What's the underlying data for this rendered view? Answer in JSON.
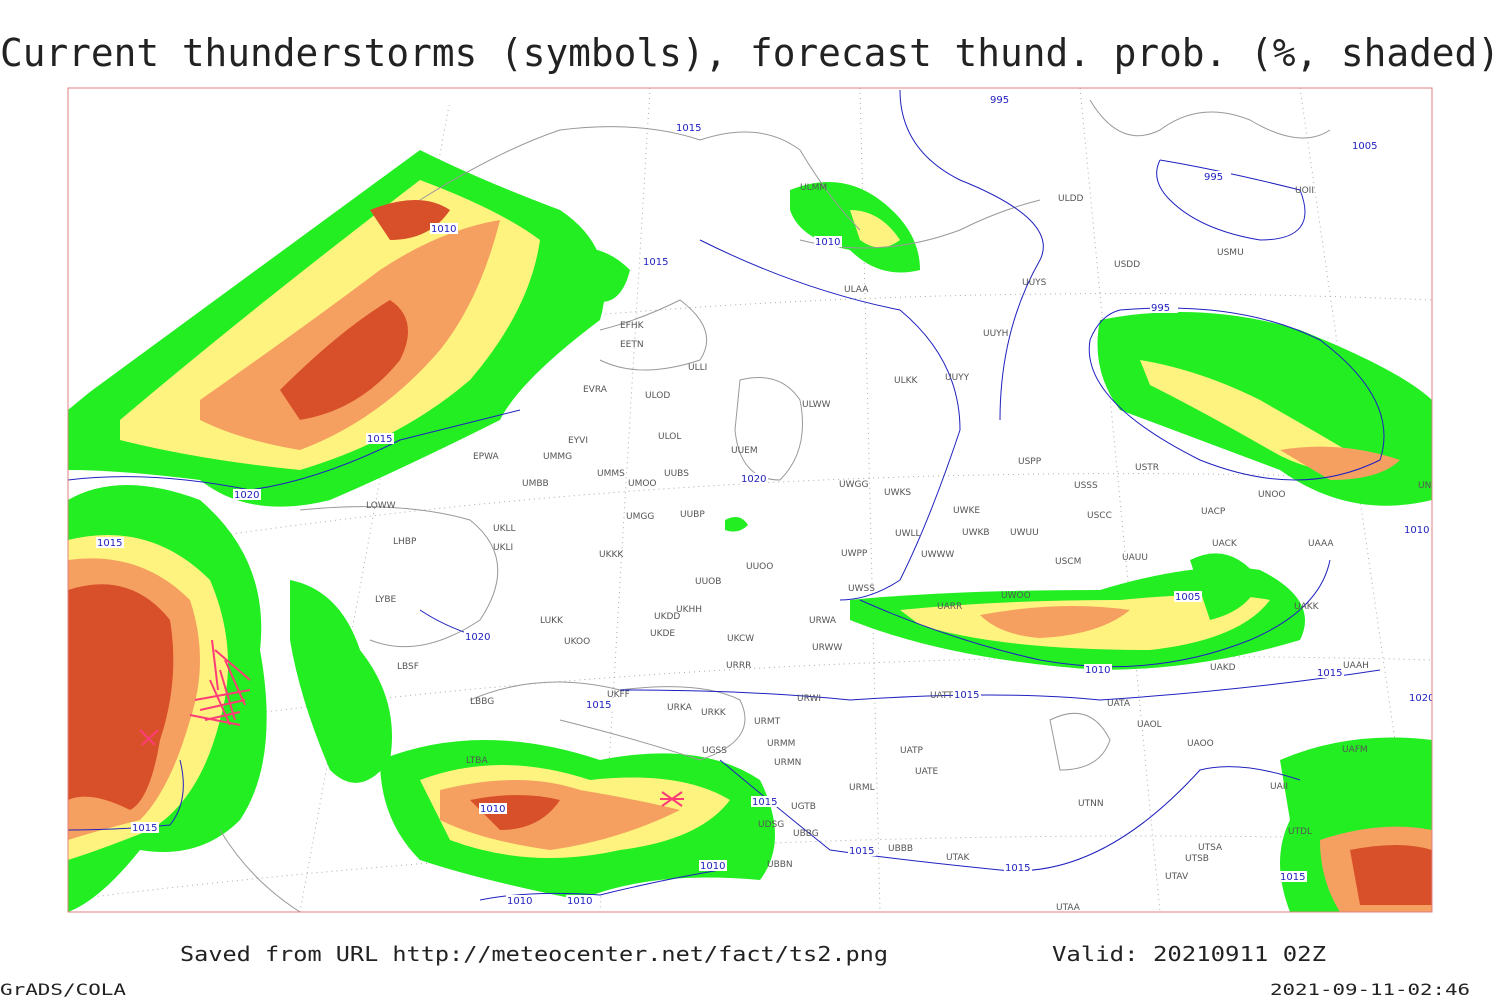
{
  "title": "Current thunderstorms (symbols), forecast thund. prob. (%, shaded)",
  "stations": [
    "ULMM",
    "ULDD",
    "UOII",
    "USDD",
    "UUYS",
    "ULAA",
    "USMU",
    "EFHK",
    "EETN",
    "UUYH",
    "ULLI",
    "ULKK",
    "UUYY",
    "EVRA",
    "ULOD",
    "ULWW",
    "EYVI",
    "ULOL",
    "UUEM",
    "EPWA",
    "UMMG",
    "UMMS",
    "UMOO",
    "UUBS",
    "USPP",
    "USTR",
    "UMBB",
    "UWGG",
    "UWKS",
    "USSS",
    "UNBB",
    "UNOO",
    "LOWW",
    "UWKE",
    "USCC",
    "UACP",
    "UKLL",
    "UMGG",
    "UUBP",
    "UWLL",
    "UWKB",
    "UWUU",
    "LHBP",
    "UKLI",
    "UAAA",
    "UACK",
    "UKKK",
    "UWPP",
    "UWWW",
    "USCM",
    "UAUU",
    "UUOO",
    "UUOB",
    "UWSS",
    "LYBE",
    "UKHH",
    "UKDD",
    "UARR",
    "UWOO",
    "UAKK",
    "UKDE",
    "LUKK",
    "UKOO",
    "URWA",
    "UKCW",
    "URWW",
    "LBSF",
    "URRR",
    "UAKD",
    "UAAH",
    "UATT",
    "URWI",
    "LBBG",
    "UKFF",
    "URKA",
    "URKK",
    "UATA",
    "URMT",
    "UAOL",
    "UAOO",
    "UGSS",
    "URMM",
    "UAFM",
    "LTBA",
    "UATP",
    "URMN",
    "UATE",
    "UBBB",
    "URML",
    "UAII",
    "UTDL",
    "UTSA",
    "UTSB",
    "UTAV",
    "UTAK",
    "UTAA",
    "UGTB",
    "UBBG",
    "UBBN",
    "UDSG",
    "UTNN"
  ],
  "isobars": [
    "995",
    "1015",
    "1005",
    "995",
    "1010",
    "1015",
    "1010",
    "995",
    "1015",
    "1020",
    "1020",
    "1015",
    "1020",
    "1015",
    "1005",
    "1015",
    "1010",
    "1015",
    "1015",
    "1015",
    "1010",
    "1010",
    "1010",
    "1015",
    "1010",
    "1015",
    "1020",
    "1010",
    "1015"
  ],
  "footer": {
    "source": "Saved from URL http://meteocenter.net/fact/ts2.png",
    "valid": "Valid: 20210911 02Z",
    "software": "GrADS/COLA",
    "timestamp": "2021-09-11-02:46"
  }
}
